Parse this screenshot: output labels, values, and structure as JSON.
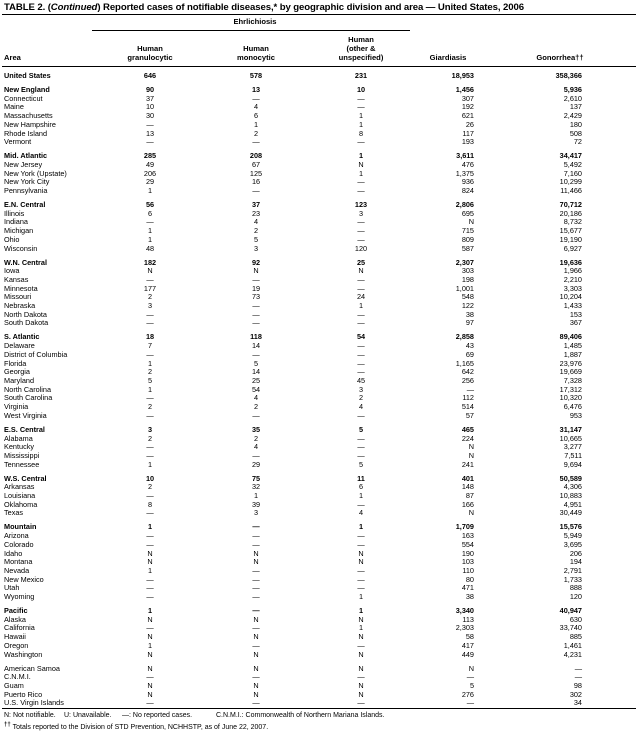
{
  "title": {
    "prefix": "TABLE 2. (",
    "italic": "Continued",
    "rest": ") Reported cases of notifiable diseases,* by geographic division and area — United States, 2006"
  },
  "header": {
    "group": "Ehrlichiosis",
    "area": "Area",
    "col1": [
      "Human",
      "granulocytic"
    ],
    "col2": [
      "Human",
      "monocytic"
    ],
    "col3": [
      "Human",
      "(other &",
      "unspecified)"
    ],
    "col4": "Giardiasis",
    "col5": "Gonorrhea††"
  },
  "groups": [
    {
      "region": true,
      "rows": [
        [
          "United States",
          "646",
          "578",
          "231",
          "18,953",
          "358,366"
        ]
      ]
    },
    {
      "region": true,
      "rows": [
        [
          "New England",
          "90",
          "13",
          "10",
          "1,456",
          "5,936"
        ],
        [
          "Connecticut",
          "37",
          "—",
          "—",
          "307",
          "2,610"
        ],
        [
          "Maine",
          "10",
          "4",
          "—",
          "192",
          "137"
        ],
        [
          "Massachusetts",
          "30",
          "6",
          "1",
          "621",
          "2,429"
        ],
        [
          "New Hampshire",
          "—",
          "1",
          "1",
          "26",
          "180"
        ],
        [
          "Rhode Island",
          "13",
          "2",
          "8",
          "117",
          "508"
        ],
        [
          "Vermont",
          "—",
          "—",
          "—",
          "193",
          "72"
        ]
      ]
    },
    {
      "region": true,
      "rows": [
        [
          "Mid. Atlantic",
          "285",
          "208",
          "1",
          "3,611",
          "34,417"
        ],
        [
          "New Jersey",
          "49",
          "67",
          "N",
          "476",
          "5,492"
        ],
        [
          "New York (Upstate)",
          "206",
          "125",
          "1",
          "1,375",
          "7,160"
        ],
        [
          "New York City",
          "29",
          "16",
          "—",
          "936",
          "10,299"
        ],
        [
          "Pennsylvania",
          "1",
          "—",
          "—",
          "824",
          "11,466"
        ]
      ]
    },
    {
      "region": true,
      "rows": [
        [
          "E.N. Central",
          "56",
          "37",
          "123",
          "2,806",
          "70,712"
        ],
        [
          "Illinois",
          "6",
          "23",
          "3",
          "695",
          "20,186"
        ],
        [
          "Indiana",
          "—",
          "4",
          "—",
          "N",
          "8,732"
        ],
        [
          "Michigan",
          "1",
          "2",
          "—",
          "715",
          "15,677"
        ],
        [
          "Ohio",
          "1",
          "5",
          "—",
          "809",
          "19,190"
        ],
        [
          "Wisconsin",
          "48",
          "3",
          "120",
          "587",
          "6,927"
        ]
      ]
    },
    {
      "region": true,
      "rows": [
        [
          "W.N. Central",
          "182",
          "92",
          "25",
          "2,307",
          "19,636"
        ],
        [
          "Iowa",
          "N",
          "N",
          "N",
          "303",
          "1,966"
        ],
        [
          "Kansas",
          "—",
          "—",
          "—",
          "198",
          "2,210"
        ],
        [
          "Minnesota",
          "177",
          "19",
          "—",
          "1,001",
          "3,303"
        ],
        [
          "Missouri",
          "2",
          "73",
          "24",
          "548",
          "10,204"
        ],
        [
          "Nebraska",
          "3",
          "—",
          "1",
          "122",
          "1,433"
        ],
        [
          "North Dakota",
          "—",
          "—",
          "—",
          "38",
          "153"
        ],
        [
          "South Dakota",
          "—",
          "—",
          "—",
          "97",
          "367"
        ]
      ]
    },
    {
      "region": true,
      "rows": [
        [
          "S. Atlantic",
          "18",
          "118",
          "54",
          "2,858",
          "89,406"
        ],
        [
          "Delaware",
          "7",
          "14",
          "—",
          "43",
          "1,485"
        ],
        [
          "District of Columbia",
          "—",
          "—",
          "—",
          "69",
          "1,887"
        ],
        [
          "Florida",
          "1",
          "5",
          "—",
          "1,165",
          "23,976"
        ],
        [
          "Georgia",
          "2",
          "14",
          "—",
          "642",
          "19,669"
        ],
        [
          "Maryland",
          "5",
          "25",
          "45",
          "256",
          "7,328"
        ],
        [
          "North Carolina",
          "1",
          "54",
          "3",
          "—",
          "17,312"
        ],
        [
          "South Carolina",
          "—",
          "4",
          "2",
          "112",
          "10,320"
        ],
        [
          "Virginia",
          "2",
          "2",
          "4",
          "514",
          "6,476"
        ],
        [
          "West Virginia",
          "—",
          "—",
          "—",
          "57",
          "953"
        ]
      ]
    },
    {
      "region": true,
      "rows": [
        [
          "E.S. Central",
          "3",
          "35",
          "5",
          "465",
          "31,147"
        ],
        [
          "Alabama",
          "2",
          "2",
          "—",
          "224",
          "10,665"
        ],
        [
          "Kentucky",
          "—",
          "4",
          "—",
          "N",
          "3,277"
        ],
        [
          "Mississippi",
          "—",
          "—",
          "—",
          "N",
          "7,511"
        ],
        [
          "Tennessee",
          "1",
          "29",
          "5",
          "241",
          "9,694"
        ]
      ]
    },
    {
      "region": true,
      "rows": [
        [
          "W.S. Central",
          "10",
          "75",
          "11",
          "401",
          "50,589"
        ],
        [
          "Arkansas",
          "2",
          "32",
          "6",
          "148",
          "4,306"
        ],
        [
          "Louisiana",
          "—",
          "1",
          "1",
          "87",
          "10,883"
        ],
        [
          "Oklahoma",
          "8",
          "39",
          "—",
          "166",
          "4,951"
        ],
        [
          "Texas",
          "—",
          "3",
          "4",
          "N",
          "30,449"
        ]
      ]
    },
    {
      "region": true,
      "rows": [
        [
          "Mountain",
          "1",
          "—",
          "1",
          "1,709",
          "15,576"
        ],
        [
          "Arizona",
          "—",
          "—",
          "—",
          "163",
          "5,949"
        ],
        [
          "Colorado",
          "—",
          "—",
          "—",
          "554",
          "3,695"
        ],
        [
          "Idaho",
          "N",
          "N",
          "N",
          "190",
          "206"
        ],
        [
          "Montana",
          "N",
          "N",
          "N",
          "103",
          "194"
        ],
        [
          "Nevada",
          "1",
          "—",
          "—",
          "110",
          "2,791"
        ],
        [
          "New Mexico",
          "—",
          "—",
          "—",
          "80",
          "1,733"
        ],
        [
          "Utah",
          "—",
          "—",
          "—",
          "471",
          "888"
        ],
        [
          "Wyoming",
          "—",
          "—",
          "1",
          "38",
          "120"
        ]
      ]
    },
    {
      "region": true,
      "rows": [
        [
          "Pacific",
          "1",
          "—",
          "1",
          "3,340",
          "40,947"
        ],
        [
          "Alaska",
          "N",
          "N",
          "N",
          "113",
          "630"
        ],
        [
          "California",
          "—",
          "—",
          "1",
          "2,303",
          "33,740"
        ],
        [
          "Hawaii",
          "N",
          "N",
          "N",
          "58",
          "885"
        ],
        [
          "Oregon",
          "1",
          "—",
          "—",
          "417",
          "1,461"
        ],
        [
          "Washington",
          "N",
          "N",
          "N",
          "449",
          "4,231"
        ]
      ]
    },
    {
      "region": false,
      "rows": [
        [
          "American Samoa",
          "N",
          "N",
          "N",
          "N",
          "—"
        ],
        [
          "C.N.M.I.",
          "—",
          "—",
          "—",
          "—",
          "—"
        ],
        [
          "Guam",
          "N",
          "N",
          "N",
          "5",
          "98"
        ],
        [
          "Puerto Rico",
          "N",
          "N",
          "N",
          "276",
          "302"
        ],
        [
          "U.S. Virgin Islands",
          "—",
          "—",
          "—",
          "—",
          "34"
        ]
      ]
    }
  ],
  "footnotes": {
    "n": "N: Not notifiable.",
    "u": "U: Unavailable.",
    "dash": "—: No reported cases.",
    "cnmi": "C.N.M.I.: Commonwealth of Northern Mariana Islands.",
    "dagger_mark": "††",
    "dagger_text": "Totals reported to the Division of STD Prevention, NCHHSTP, as of June 22, 2007."
  }
}
